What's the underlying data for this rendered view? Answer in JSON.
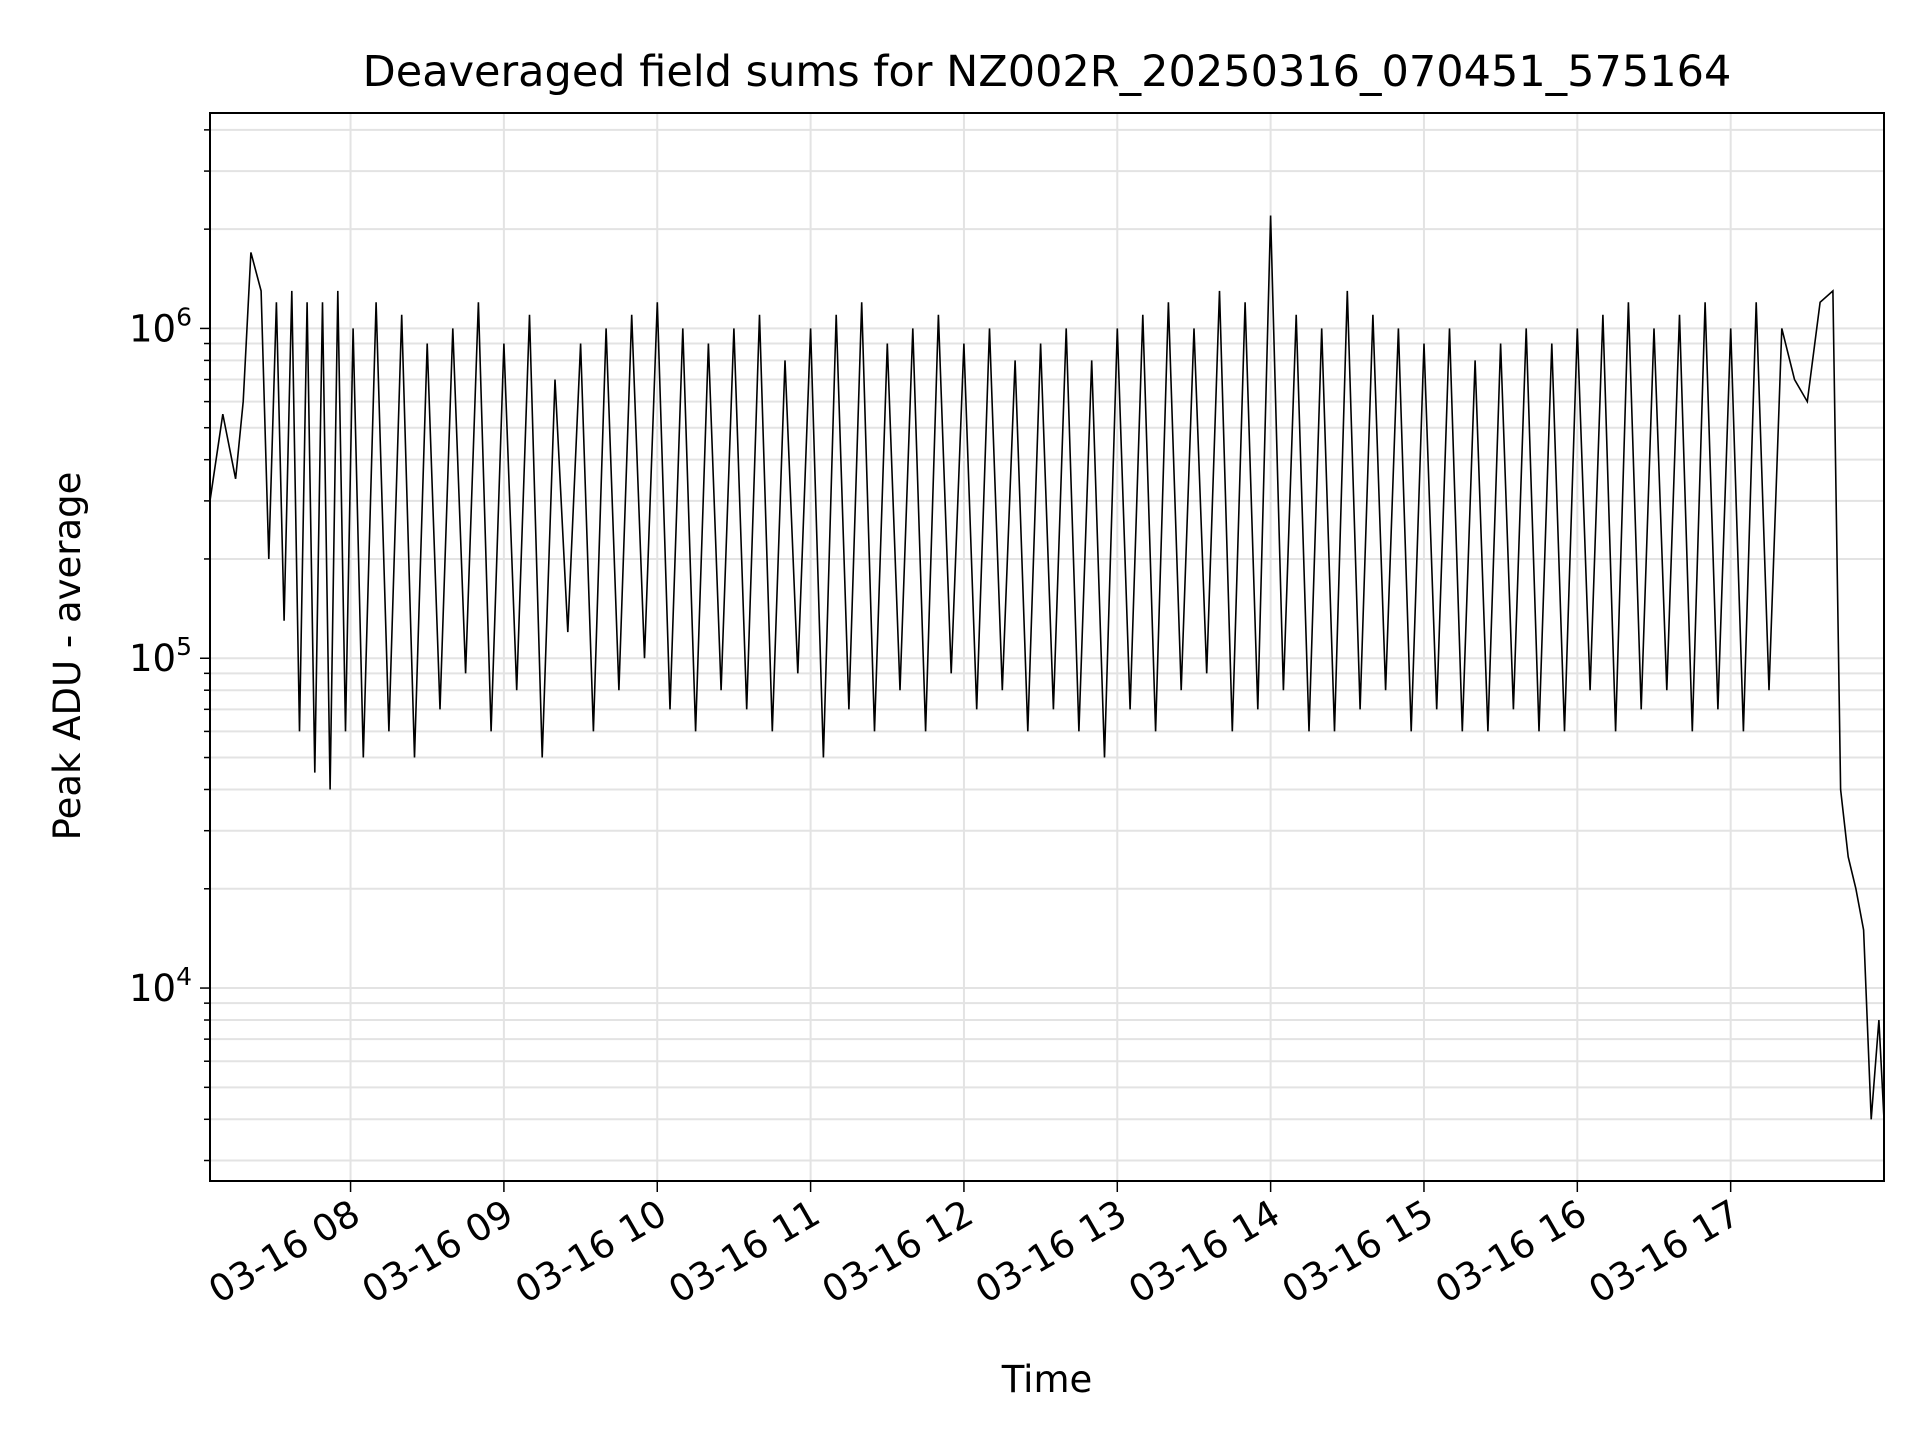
{
  "chart_data": {
    "type": "line",
    "title": "Deaveraged field sums for NZ002R_20250316_070451_575164",
    "xlabel": "Time",
    "ylabel": "Peak ADU - average",
    "yscale": "log",
    "grid": true,
    "xlim": [
      "2025-03-16 07:05",
      "2025-03-16 18:00"
    ],
    "ylim": [
      2600,
      4500000
    ],
    "x_ticks": [
      "03-16 08",
      "03-16 09",
      "03-16 10",
      "03-16 11",
      "03-16 12",
      "03-16 13",
      "03-16 14",
      "03-16 15",
      "03-16 16",
      "03-16 17"
    ],
    "y_ticks": [
      {
        "base": "10",
        "exp": "4"
      },
      {
        "base": "10",
        "exp": "5"
      },
      {
        "base": "10",
        "exp": "6"
      }
    ],
    "series": [
      {
        "color": "#000000",
        "x": [
          "2025-03-16 07:05",
          "2025-03-16 07:10",
          "2025-03-16 07:15",
          "2025-03-16 07:18",
          "2025-03-16 07:21",
          "2025-03-16 07:25",
          "2025-03-16 07:28",
          "2025-03-16 07:31",
          "2025-03-16 07:34",
          "2025-03-16 07:37",
          "2025-03-16 07:40",
          "2025-03-16 07:43",
          "2025-03-16 07:46",
          "2025-03-16 07:49",
          "2025-03-16 07:52",
          "2025-03-16 07:55",
          "2025-03-16 07:58",
          "2025-03-16 08:01",
          "2025-03-16 08:05",
          "2025-03-16 08:10",
          "2025-03-16 08:15",
          "2025-03-16 08:20",
          "2025-03-16 08:25",
          "2025-03-16 08:30",
          "2025-03-16 08:35",
          "2025-03-16 08:40",
          "2025-03-16 08:45",
          "2025-03-16 08:50",
          "2025-03-16 08:55",
          "2025-03-16 09:00",
          "2025-03-16 09:05",
          "2025-03-16 09:10",
          "2025-03-16 09:15",
          "2025-03-16 09:20",
          "2025-03-16 09:25",
          "2025-03-16 09:30",
          "2025-03-16 09:35",
          "2025-03-16 09:40",
          "2025-03-16 09:45",
          "2025-03-16 09:50",
          "2025-03-16 09:55",
          "2025-03-16 10:00",
          "2025-03-16 10:05",
          "2025-03-16 10:10",
          "2025-03-16 10:15",
          "2025-03-16 10:20",
          "2025-03-16 10:25",
          "2025-03-16 10:30",
          "2025-03-16 10:35",
          "2025-03-16 10:40",
          "2025-03-16 10:45",
          "2025-03-16 10:50",
          "2025-03-16 10:55",
          "2025-03-16 11:00",
          "2025-03-16 11:05",
          "2025-03-16 11:10",
          "2025-03-16 11:15",
          "2025-03-16 11:20",
          "2025-03-16 11:25",
          "2025-03-16 11:30",
          "2025-03-16 11:35",
          "2025-03-16 11:40",
          "2025-03-16 11:45",
          "2025-03-16 11:50",
          "2025-03-16 11:55",
          "2025-03-16 12:00",
          "2025-03-16 12:05",
          "2025-03-16 12:10",
          "2025-03-16 12:15",
          "2025-03-16 12:20",
          "2025-03-16 12:25",
          "2025-03-16 12:30",
          "2025-03-16 12:35",
          "2025-03-16 12:40",
          "2025-03-16 12:45",
          "2025-03-16 12:50",
          "2025-03-16 12:55",
          "2025-03-16 13:00",
          "2025-03-16 13:05",
          "2025-03-16 13:10",
          "2025-03-16 13:15",
          "2025-03-16 13:20",
          "2025-03-16 13:25",
          "2025-03-16 13:30",
          "2025-03-16 13:35",
          "2025-03-16 13:40",
          "2025-03-16 13:45",
          "2025-03-16 13:50",
          "2025-03-16 13:55",
          "2025-03-16 14:00",
          "2025-03-16 14:05",
          "2025-03-16 14:10",
          "2025-03-16 14:15",
          "2025-03-16 14:20",
          "2025-03-16 14:25",
          "2025-03-16 14:30",
          "2025-03-16 14:35",
          "2025-03-16 14:40",
          "2025-03-16 14:45",
          "2025-03-16 14:50",
          "2025-03-16 14:55",
          "2025-03-16 15:00",
          "2025-03-16 15:05",
          "2025-03-16 15:10",
          "2025-03-16 15:15",
          "2025-03-16 15:20",
          "2025-03-16 15:25",
          "2025-03-16 15:30",
          "2025-03-16 15:35",
          "2025-03-16 15:40",
          "2025-03-16 15:45",
          "2025-03-16 15:50",
          "2025-03-16 15:55",
          "2025-03-16 16:00",
          "2025-03-16 16:05",
          "2025-03-16 16:10",
          "2025-03-16 16:15",
          "2025-03-16 16:20",
          "2025-03-16 16:25",
          "2025-03-16 16:30",
          "2025-03-16 16:35",
          "2025-03-16 16:40",
          "2025-03-16 16:45",
          "2025-03-16 16:50",
          "2025-03-16 16:55",
          "2025-03-16 17:00",
          "2025-03-16 17:05",
          "2025-03-16 17:10",
          "2025-03-16 17:15",
          "2025-03-16 17:20",
          "2025-03-16 17:25",
          "2025-03-16 17:30",
          "2025-03-16 17:35",
          "2025-03-16 17:40",
          "2025-03-16 17:43",
          "2025-03-16 17:46",
          "2025-03-16 17:49",
          "2025-03-16 17:52",
          "2025-03-16 17:55",
          "2025-03-16 17:58",
          "2025-03-16 18:00"
        ],
        "y": [
          300000,
          550000,
          350000,
          600000,
          1700000,
          1300000,
          200000,
          1200000,
          130000,
          1300000,
          60000,
          1200000,
          45000,
          1200000,
          40000,
          1300000,
          60000,
          1000000,
          50000,
          1200000,
          60000,
          1100000,
          50000,
          900000,
          70000,
          1000000,
          90000,
          1200000,
          60000,
          900000,
          80000,
          1100000,
          50000,
          700000,
          120000,
          900000,
          60000,
          1000000,
          80000,
          1100000,
          100000,
          1200000,
          70000,
          1000000,
          60000,
          900000,
          80000,
          1000000,
          70000,
          1100000,
          60000,
          800000,
          90000,
          1000000,
          50000,
          1100000,
          70000,
          1200000,
          60000,
          900000,
          80000,
          1000000,
          60000,
          1100000,
          90000,
          900000,
          70000,
          1000000,
          80000,
          800000,
          60000,
          900000,
          70000,
          1000000,
          60000,
          800000,
          50000,
          1000000,
          70000,
          1100000,
          60000,
          1200000,
          80000,
          1000000,
          90000,
          1300000,
          60000,
          1200000,
          70000,
          2200000,
          80000,
          1100000,
          60000,
          1000000,
          60000,
          1300000,
          70000,
          1100000,
          80000,
          1000000,
          60000,
          900000,
          70000,
          1000000,
          60000,
          800000,
          60000,
          900000,
          70000,
          1000000,
          60000,
          900000,
          60000,
          1000000,
          80000,
          1100000,
          60000,
          1200000,
          70000,
          1000000,
          80000,
          1100000,
          60000,
          1200000,
          70000,
          1000000,
          60000,
          1200000,
          80000,
          1000000,
          700000,
          600000,
          1200000,
          1300000,
          40000,
          25000,
          20000,
          15000,
          4000,
          8000,
          4000
        ]
      }
    ]
  }
}
